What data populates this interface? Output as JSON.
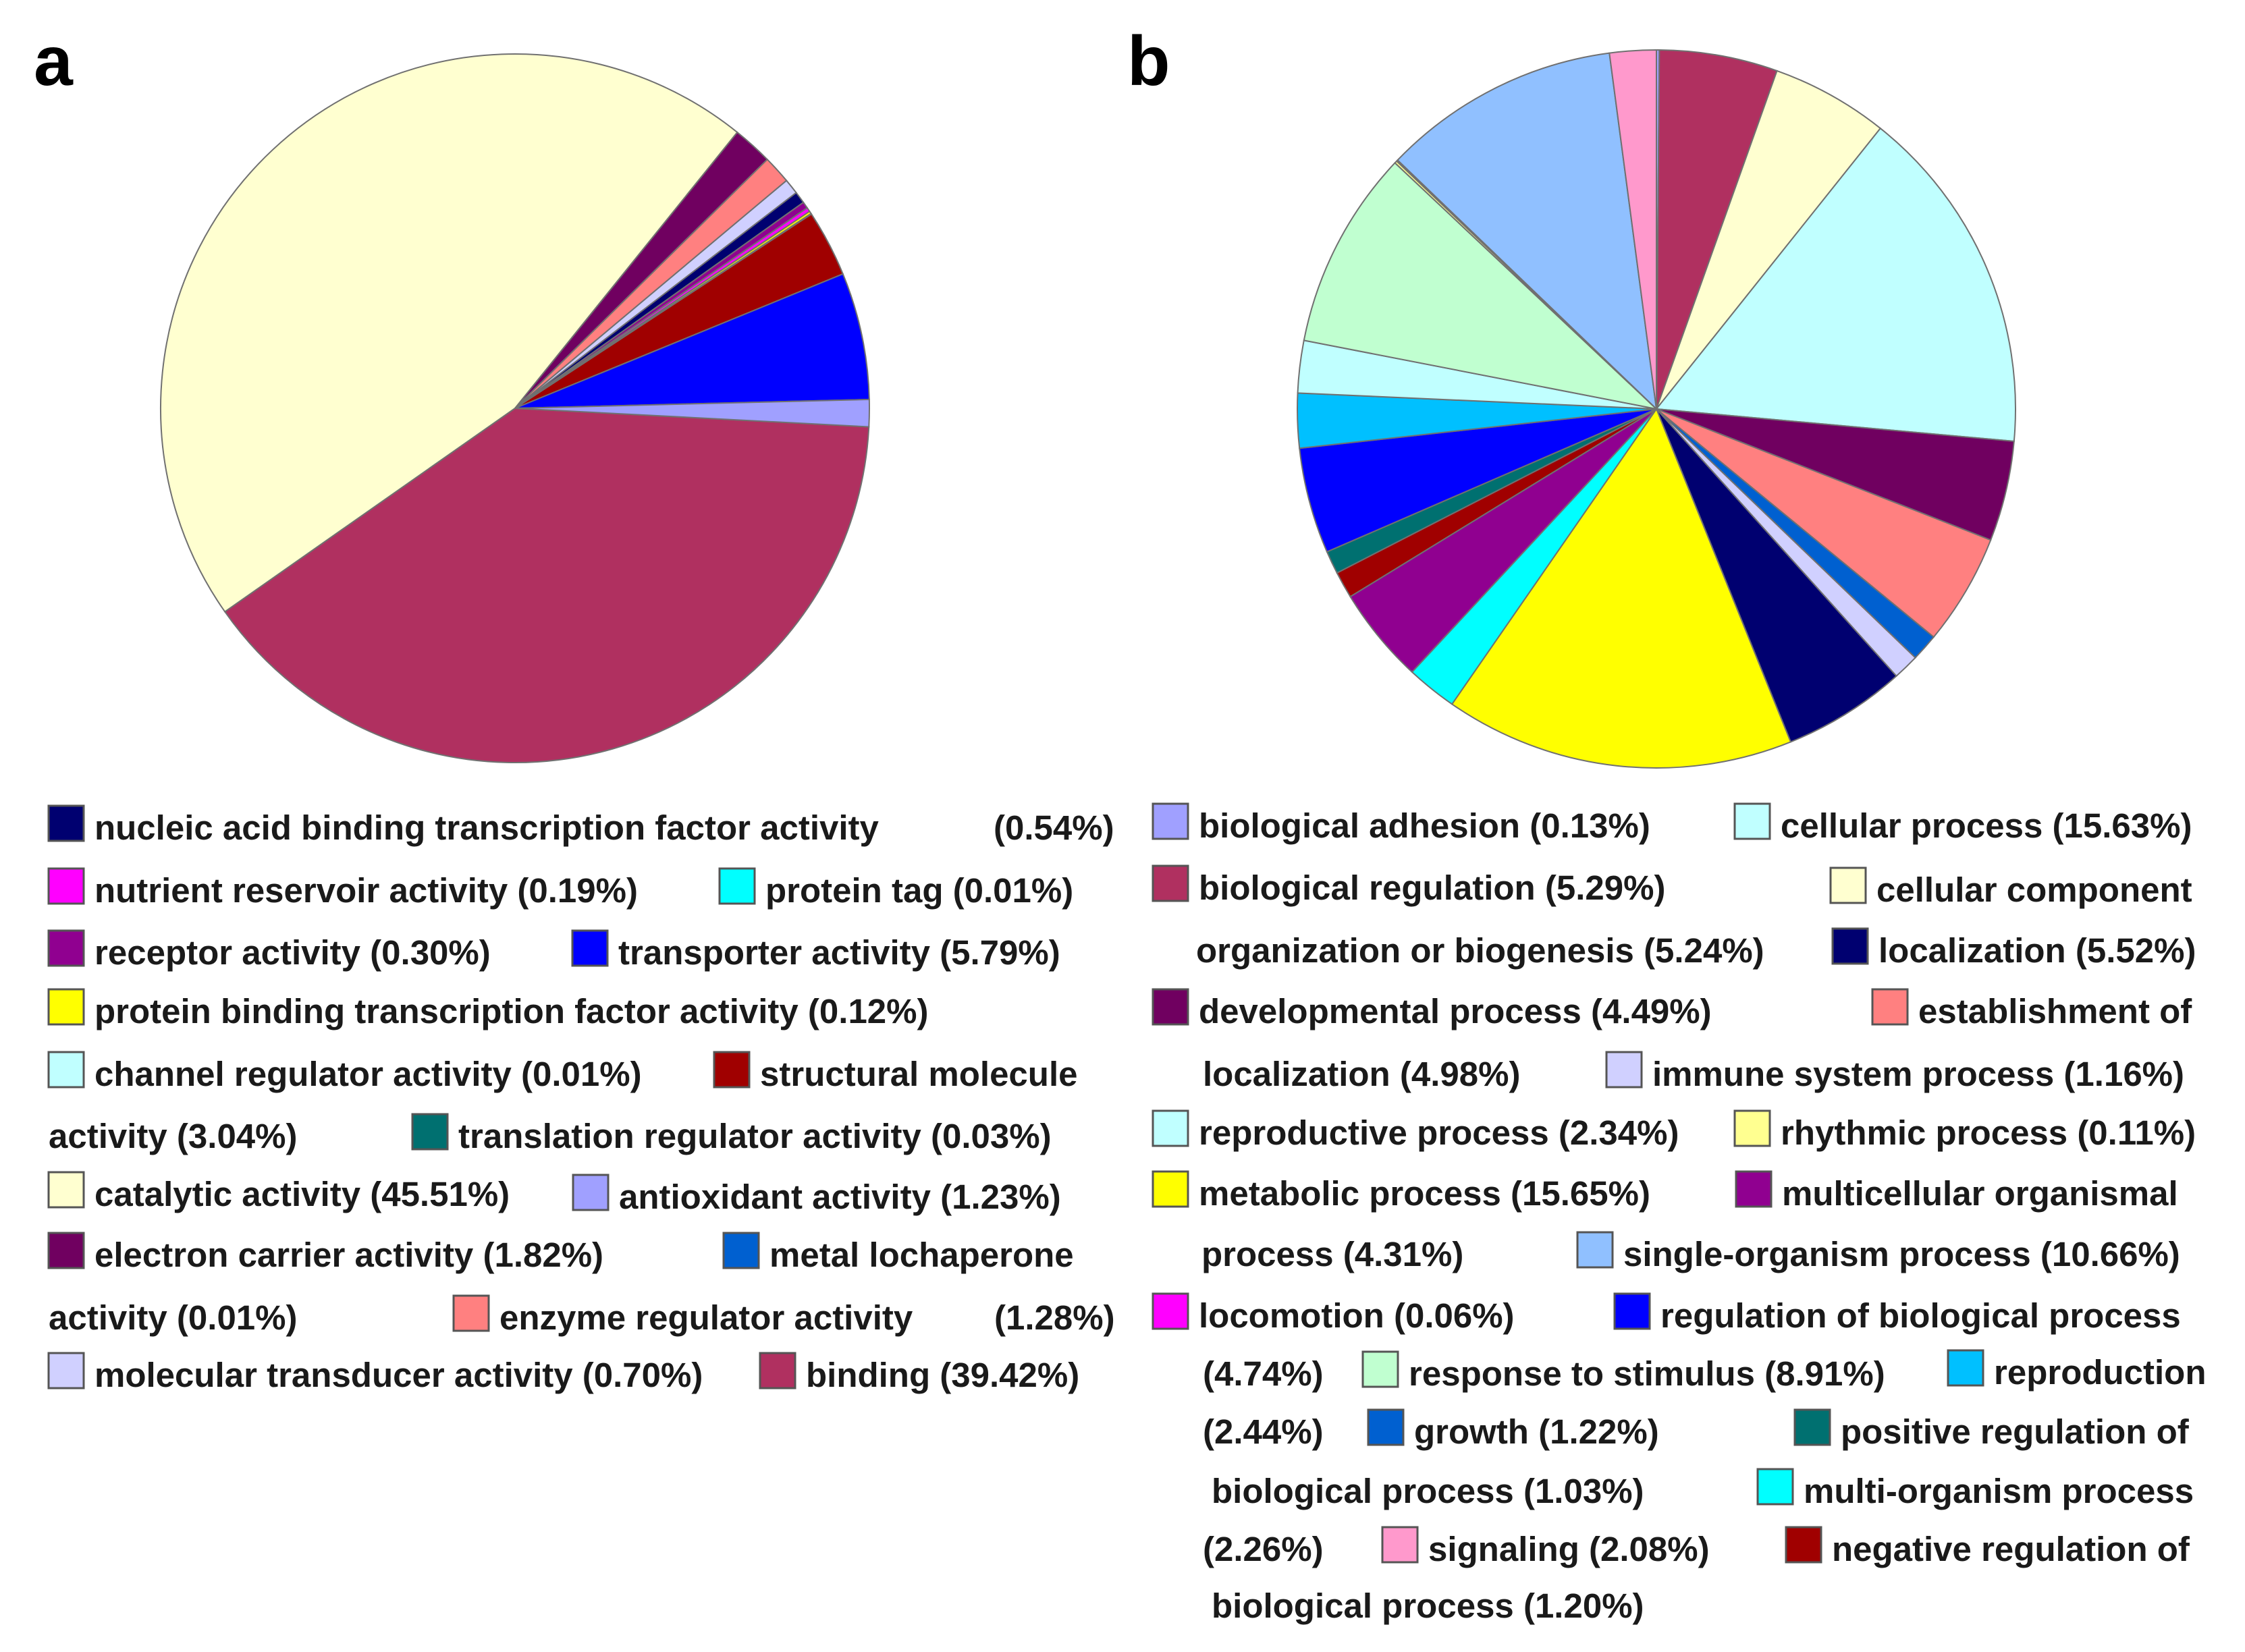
{
  "chart_data": [
    {
      "type": "pie",
      "panel_label": "a",
      "slices": [
        {
          "name": "binding",
          "value": 39.42,
          "color": "#b03060"
        },
        {
          "name": "catalytic activity",
          "value": 45.51,
          "color": "#ffffd0"
        },
        {
          "name": "electron carrier activity",
          "value": 1.82,
          "color": "#700060"
        },
        {
          "name": "enzyme regulator activity",
          "value": 1.28,
          "color": "#ff8080"
        },
        {
          "name": "molecular transducer activity",
          "value": 0.7,
          "color": "#d0d0ff"
        },
        {
          "name": "nucleic acid binding transcription factor activity",
          "value": 0.54,
          "color": "#000070"
        },
        {
          "name": "receptor activity",
          "value": 0.3,
          "color": "#900090"
        },
        {
          "name": "nutrient reservoir activity",
          "value": 0.19,
          "color": "#ff00ff"
        },
        {
          "name": "protein binding transcription factor activity",
          "value": 0.12,
          "color": "#ffff00"
        },
        {
          "name": "translation regulator activity",
          "value": 0.03,
          "color": "#007070"
        },
        {
          "name": "structural molecule activity",
          "value": 3.04,
          "color": "#a00000"
        },
        {
          "name": "transporter activity",
          "value": 5.79,
          "color": "#0000ff"
        },
        {
          "name": "antioxidant activity",
          "value": 1.23,
          "color": "#a0a0ff"
        }
      ],
      "legend": [
        {
          "text": "nucleic acid binding transcription factor activity",
          "pct": "(0.54%)",
          "color": "#000070"
        },
        {
          "text": "nutrient reservoir activity (0.19%)",
          "color": "#ff00ff"
        },
        {
          "text": "protein tag (0.01%)",
          "color": "#00ffff"
        },
        {
          "text": "receptor activity (0.30%)",
          "color": "#900090"
        },
        {
          "text": "transporter activity (5.79%)",
          "color": "#0000ff"
        },
        {
          "text": "protein binding transcription factor activity (0.12%)",
          "color": "#ffff00"
        },
        {
          "text": "channel regulator activity (0.01%)",
          "color": "#c0ffff"
        },
        {
          "text": "structural molecule",
          "color": "#a00000"
        },
        {
          "text": "activity (3.04%)",
          "color": ""
        },
        {
          "text": "translation regulator activity (0.03%)",
          "color": "#007070"
        },
        {
          "text": "catalytic activity (45.51%)",
          "color": "#ffffd0"
        },
        {
          "text": "antioxidant activity (1.23%)",
          "color": "#a0a0ff"
        },
        {
          "text": "electron carrier activity (1.82%)",
          "color": "#700060"
        },
        {
          "text": "metal lochaperone",
          "color": "#0060d0"
        },
        {
          "text": "activity (0.01%)",
          "color": ""
        },
        {
          "text": "enzyme regulator activity",
          "pct": "(1.28%)",
          "color": "#ff8080"
        },
        {
          "text": "molecular transducer activity (0.70%)",
          "color": "#d0d0ff"
        },
        {
          "text": "binding (39.42%)",
          "color": "#b03060"
        }
      ]
    },
    {
      "type": "pie",
      "panel_label": "b",
      "slices": [
        {
          "name": "biological adhesion",
          "value": 0.13,
          "color": "#a0a0ff"
        },
        {
          "name": "biological regulation",
          "value": 5.29,
          "color": "#b03060"
        },
        {
          "name": "cellular component organization or biogenesis",
          "value": 5.24,
          "color": "#ffffd0"
        },
        {
          "name": "cellular process",
          "value": 15.63,
          "color": "#c0ffff"
        },
        {
          "name": "developmental process",
          "value": 4.49,
          "color": "#700060"
        },
        {
          "name": "establishment of localization",
          "value": 4.98,
          "color": "#ff8080"
        },
        {
          "name": "growth",
          "value": 1.22,
          "color": "#0060d0"
        },
        {
          "name": "immune system process",
          "value": 1.16,
          "color": "#d0d0ff"
        },
        {
          "name": "localization",
          "value": 5.52,
          "color": "#000070"
        },
        {
          "name": "metabolic process",
          "value": 15.65,
          "color": "#ffff00"
        },
        {
          "name": "multi-organism process",
          "value": 2.26,
          "color": "#00ffff"
        },
        {
          "name": "multicellular organismal process",
          "value": 4.31,
          "color": "#900090"
        },
        {
          "name": "negative regulation of biological process",
          "value": 1.2,
          "color": "#a00000"
        },
        {
          "name": "positive regulation of biological process",
          "value": 1.03,
          "color": "#007070"
        },
        {
          "name": "regulation of biological process",
          "value": 4.74,
          "color": "#0000ff"
        },
        {
          "name": "reproduction",
          "value": 2.44,
          "color": "#00c0ff"
        },
        {
          "name": "reproductive process",
          "value": 2.34,
          "color": "#c0ffff"
        },
        {
          "name": "response to stimulus",
          "value": 8.91,
          "color": "#c0ffd0"
        },
        {
          "name": "rhythmic process",
          "value": 0.11,
          "color": "#ffff90"
        },
        {
          "name": "locomotion",
          "value": 0.06,
          "color": "#ff00ff"
        },
        {
          "name": "single-organism process",
          "value": 10.66,
          "color": "#90c0ff"
        },
        {
          "name": "signaling",
          "value": 2.08,
          "color": "#ff99cc"
        }
      ],
      "legend": [
        {
          "text": "biological adhesion (0.13%)",
          "color": "#a0a0ff"
        },
        {
          "text": "cellular process (15.63%)",
          "color": "#c0ffff"
        },
        {
          "text": "biological regulation (5.29%)",
          "color": "#b03060"
        },
        {
          "text": "cellular component",
          "color": "#ffffd0"
        },
        {
          "text": "organization or biogenesis (5.24%)",
          "color": ""
        },
        {
          "text": "localization (5.52%)",
          "color": "#000070"
        },
        {
          "text": "developmental process (4.49%)",
          "color": "#700060"
        },
        {
          "text": "establishment of",
          "color": "#ff8080"
        },
        {
          "text": "localization (4.98%)",
          "color": ""
        },
        {
          "text": "immune system process (1.16%)",
          "color": "#d0d0ff"
        },
        {
          "text": "reproductive process (2.34%)",
          "color": "#c0ffff"
        },
        {
          "text": "rhythmic process (0.11%)",
          "color": "#ffff90"
        },
        {
          "text": "metabolic process (15.65%)",
          "color": "#ffff00"
        },
        {
          "text": "multicellular organismal",
          "color": "#900090"
        },
        {
          "text": "process (4.31%)",
          "color": ""
        },
        {
          "text": "single-organism process (10.66%)",
          "color": "#90c0ff"
        },
        {
          "text": "locomotion (0.06%)",
          "color": "#ff00ff"
        },
        {
          "text": "regulation of biological process",
          "color": "#0000ff"
        },
        {
          "text": "(4.74%)",
          "color": ""
        },
        {
          "text": "response to stimulus (8.91%)",
          "color": "#c0ffd0"
        },
        {
          "text": "reproduction",
          "color": "#00c0ff"
        },
        {
          "text": "(2.44%)",
          "color": ""
        },
        {
          "text": "growth (1.22%)",
          "color": "#0060d0"
        },
        {
          "text": "positive regulation of",
          "color": "#007070"
        },
        {
          "text": "biological process (1.03%)",
          "color": ""
        },
        {
          "text": "multi-organism process",
          "color": "#00ffff"
        },
        {
          "text": "(2.26%)",
          "color": ""
        },
        {
          "text": "signaling (2.08%)",
          "color": "#ff99cc"
        },
        {
          "text": "negative regulation of",
          "color": "#a00000"
        },
        {
          "text": "biological process (1.20%)",
          "color": ""
        }
      ]
    }
  ]
}
